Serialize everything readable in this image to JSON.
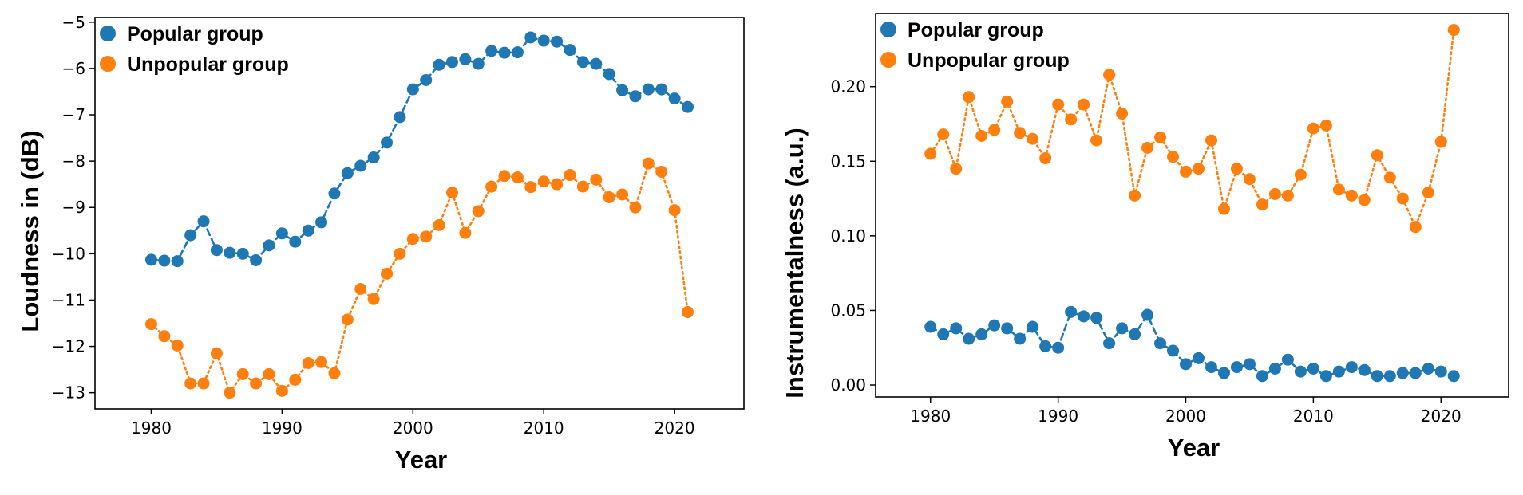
{
  "colors": {
    "popular": "#1f77b4",
    "unpopular": "#ff7f0e"
  },
  "chart_data": [
    {
      "type": "line",
      "xlabel": "Year",
      "ylabel": "Loudness in (dB)",
      "xlim": [
        1975.7,
        2025.3
      ],
      "ylim": [
        -13.35,
        -4.9
      ],
      "xticks": [
        1980,
        1990,
        2000,
        2010,
        2020
      ],
      "yticks": [
        -13,
        -12,
        -11,
        -10,
        -9,
        -8,
        -7,
        -6,
        -5
      ],
      "ytick_labels": [
        "−13",
        "−12",
        "−11",
        "−10",
        "−9",
        "−8",
        "−7",
        "−6",
        "−5"
      ],
      "legend_position": "top-left",
      "x": [
        1980,
        1981,
        1982,
        1983,
        1984,
        1985,
        1986,
        1987,
        1988,
        1989,
        1990,
        1991,
        1992,
        1993,
        1994,
        1995,
        1996,
        1997,
        1998,
        1999,
        2000,
        2001,
        2002,
        2003,
        2004,
        2005,
        2006,
        2007,
        2008,
        2009,
        2010,
        2011,
        2012,
        2013,
        2014,
        2015,
        2016,
        2017,
        2018,
        2019,
        2020,
        2021
      ],
      "series": [
        {
          "name": "Popular group",
          "color": "#1f77b4",
          "line_style": "dashed",
          "values": [
            -10.13,
            -10.15,
            -10.16,
            -9.6,
            -9.3,
            -9.92,
            -9.98,
            -10.0,
            -10.14,
            -9.82,
            -9.56,
            -9.74,
            -9.5,
            -9.32,
            -8.7,
            -8.26,
            -8.1,
            -7.92,
            -7.6,
            -7.05,
            -6.45,
            -6.25,
            -5.92,
            -5.86,
            -5.8,
            -5.9,
            -5.62,
            -5.66,
            -5.65,
            -5.33,
            -5.4,
            -5.42,
            -5.6,
            -5.86,
            -5.9,
            -6.12,
            -6.47,
            -6.6,
            -6.45,
            -6.45,
            -6.65,
            -6.83
          ]
        },
        {
          "name": "Unpopular group",
          "color": "#ff7f0e",
          "line_style": "dotted",
          "values": [
            -11.52,
            -11.78,
            -11.98,
            -12.8,
            -12.8,
            -12.15,
            -13.0,
            -12.6,
            -12.8,
            -12.6,
            -12.96,
            -12.72,
            -12.36,
            -12.34,
            -12.58,
            -11.42,
            -10.76,
            -10.98,
            -10.43,
            -10.0,
            -9.68,
            -9.63,
            -9.38,
            -8.68,
            -9.55,
            -9.08,
            -8.55,
            -8.32,
            -8.35,
            -8.56,
            -8.44,
            -8.5,
            -8.3,
            -8.55,
            -8.4,
            -8.78,
            -8.72,
            -9.0,
            -8.05,
            -8.23,
            -9.06,
            -11.26
          ]
        }
      ]
    },
    {
      "type": "line",
      "xlabel": "Year",
      "ylabel": "Instrumentalness (a.u.)",
      "xlim": [
        1975.7,
        2025.3
      ],
      "ylim": [
        -0.008,
        0.249
      ],
      "xticks": [
        1980,
        1990,
        2000,
        2010,
        2020
      ],
      "yticks": [
        0.0,
        0.05,
        0.1,
        0.15,
        0.2
      ],
      "ytick_labels": [
        "0.00",
        "0.05",
        "0.10",
        "0.15",
        "0.20"
      ],
      "legend_position": "top-left",
      "x": [
        1980,
        1981,
        1982,
        1983,
        1984,
        1985,
        1986,
        1987,
        1988,
        1989,
        1990,
        1991,
        1992,
        1993,
        1994,
        1995,
        1996,
        1997,
        1998,
        1999,
        2000,
        2001,
        2002,
        2003,
        2004,
        2005,
        2006,
        2007,
        2008,
        2009,
        2010,
        2011,
        2012,
        2013,
        2014,
        2015,
        2016,
        2017,
        2018,
        2019,
        2020,
        2021
      ],
      "series": [
        {
          "name": "Popular group",
          "color": "#1f77b4",
          "line_style": "dashed",
          "values": [
            0.039,
            0.034,
            0.038,
            0.031,
            0.034,
            0.04,
            0.038,
            0.031,
            0.039,
            0.026,
            0.025,
            0.049,
            0.046,
            0.045,
            0.028,
            0.038,
            0.034,
            0.047,
            0.028,
            0.023,
            0.014,
            0.018,
            0.012,
            0.008,
            0.012,
            0.014,
            0.006,
            0.011,
            0.017,
            0.009,
            0.011,
            0.006,
            0.009,
            0.012,
            0.01,
            0.006,
            0.006,
            0.008,
            0.008,
            0.011,
            0.009,
            0.006
          ]
        },
        {
          "name": "Unpopular group",
          "color": "#ff7f0e",
          "line_style": "dotted",
          "values": [
            0.155,
            0.168,
            0.145,
            0.193,
            0.167,
            0.171,
            0.19,
            0.169,
            0.165,
            0.152,
            0.188,
            0.178,
            0.188,
            0.164,
            0.208,
            0.182,
            0.127,
            0.159,
            0.166,
            0.153,
            0.143,
            0.145,
            0.164,
            0.118,
            0.145,
            0.138,
            0.121,
            0.128,
            0.127,
            0.141,
            0.172,
            0.174,
            0.131,
            0.127,
            0.124,
            0.154,
            0.139,
            0.125,
            0.106,
            0.129,
            0.163,
            0.238
          ]
        }
      ]
    }
  ]
}
